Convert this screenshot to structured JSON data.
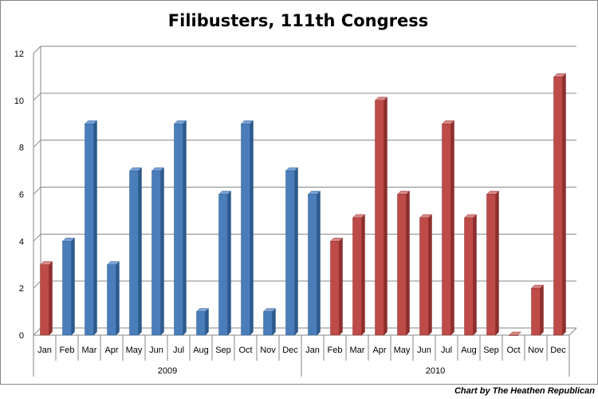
{
  "chart_data": {
    "type": "bar",
    "title": "Filibusters, 111th Congress",
    "credit": "Chart by The Heathen Republican",
    "ylim": [
      0,
      12
    ],
    "yticks": [
      0,
      2,
      4,
      6,
      8,
      10,
      12
    ],
    "grid": true,
    "groups": [
      {
        "label": "2009",
        "months": [
          "Jan",
          "Feb",
          "Mar",
          "Apr",
          "May",
          "Jun",
          "Jul",
          "Aug",
          "Sep",
          "Oct",
          "Nov",
          "Dec"
        ],
        "values": [
          3,
          4,
          9,
          3,
          7,
          7,
          9,
          1,
          6,
          9,
          1,
          7
        ],
        "colors": [
          "red",
          "blue",
          "blue",
          "blue",
          "blue",
          "blue",
          "blue",
          "blue",
          "blue",
          "blue",
          "blue",
          "blue"
        ]
      },
      {
        "label": "2010",
        "months": [
          "Jan",
          "Feb",
          "Mar",
          "Apr",
          "May",
          "Jun",
          "Jul",
          "Aug",
          "Sep",
          "Oct",
          "Nov",
          "Dec"
        ],
        "values": [
          6,
          4,
          5,
          10,
          6,
          5,
          9,
          5,
          6,
          0,
          2,
          11
        ],
        "colors": [
          "blue",
          "red",
          "red",
          "red",
          "red",
          "red",
          "red",
          "red",
          "red",
          "red",
          "red",
          "red"
        ]
      }
    ],
    "series_colors": {
      "blue": "#4a7ebb",
      "red": "#be4b48"
    }
  }
}
